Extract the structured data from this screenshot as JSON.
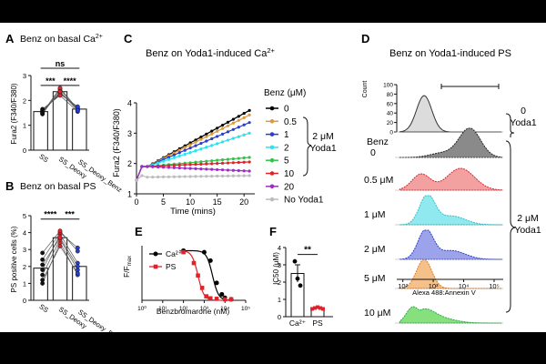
{
  "colors": {
    "ink": "#111111",
    "ss": "#111111",
    "deoxy": "#e0232b",
    "benz": "#2a3fc9",
    "b0": "#000000",
    "b05": "#e09a3a",
    "b1": "#2a3fc9",
    "b2": "#2ee0f0",
    "b5": "#33c24a",
    "b10": "#e0232b",
    "b20": "#9c2cc9",
    "noyoda": "#bdbdbd",
    "ca": "#000000",
    "ps": "#e0232b",
    "h_noyoda": "#dcdcdc",
    "h_0": "#8a8a8a",
    "h_05": "#f3a0a0",
    "h_1": "#8fe9ef",
    "h_2": "#9da3ea",
    "h_5": "#f6c08a",
    "h_10": "#86e07e"
  },
  "panels": {
    "a": {
      "letter": "A",
      "title_main": "Benz on basal Ca",
      "title_sup": "2+",
      "ylabel": "Fura2 (F340/F380)"
    },
    "b": {
      "letter": "B",
      "title": "Benz on basal PS",
      "ylabel": "PS positive cells (%)"
    },
    "c": {
      "letter": "C",
      "title_main": "Benz on Yoda1-induced Ca",
      "title_sup": "2+",
      "legend_title": "Benz (μM)",
      "bracket_label_1": "2 μM",
      "bracket_label_2": "Yoda1"
    },
    "d": {
      "letter": "D",
      "title": "Benz on Yoda1-induced PS",
      "ylabel": "Count",
      "xlabel": "Alexa 488:Annexin V",
      "side_top_1": "0",
      "side_top_2": "Yoda1",
      "side_bottom_1": "2 μM",
      "side_bottom_2": "Yoda1"
    },
    "e": {
      "letter": "E",
      "ylabel": "F/F",
      "ylabel_sub": "max"
    },
    "f": {
      "letter": "F",
      "ylabel": "IC50 (μM)"
    }
  },
  "chart_data": [
    {
      "id": "A",
      "type": "bar",
      "title": "Benz on basal Ca2+",
      "ylabel": "Fura2 (F340/F380)",
      "categories": [
        "SS",
        "SS_Deoxy",
        "SS_Deoxy_Benz"
      ],
      "values": [
        1.55,
        2.35,
        1.65
      ],
      "ylim": [
        0,
        3
      ],
      "yticks": [
        "0",
        "1",
        "2",
        "3"
      ],
      "paired_points": [
        [
          1.45,
          2.45,
          1.6
        ],
        [
          1.5,
          2.5,
          1.65
        ],
        [
          1.55,
          2.3,
          1.7
        ],
        [
          1.6,
          2.25,
          1.75
        ],
        [
          1.65,
          2.2,
          1.55
        ],
        [
          1.5,
          2.35,
          1.6
        ]
      ],
      "annotations": [
        {
          "text": "ns",
          "from": 0,
          "to": 2,
          "level": 3.0
        },
        {
          "text": "***",
          "from": 0,
          "to": 1,
          "level": 2.6
        },
        {
          "text": "****",
          "from": 1,
          "to": 2,
          "level": 2.6
        }
      ]
    },
    {
      "id": "B",
      "type": "bar",
      "title": "Benz on basal PS",
      "ylabel": "PS positive cells (%)",
      "categories": [
        "SS",
        "SS_Deoxy",
        "SS_Deoxy_Benz"
      ],
      "values": [
        1.9,
        3.7,
        2.0
      ],
      "ylim": [
        0,
        5
      ],
      "yticks": [
        "0",
        "1",
        "2",
        "3",
        "4",
        "5"
      ],
      "paired_points": [
        [
          1.0,
          3.4,
          1.5
        ],
        [
          1.5,
          3.6,
          1.8
        ],
        [
          1.8,
          3.9,
          2.2
        ],
        [
          2.4,
          4.0,
          3.1
        ],
        [
          2.8,
          4.1,
          2.9
        ],
        [
          1.2,
          3.2,
          1.6
        ],
        [
          2.1,
          3.7,
          2.0
        ]
      ],
      "annotations": [
        {
          "text": "****",
          "from": 0,
          "to": 1,
          "level": 4.8
        },
        {
          "text": "***",
          "from": 1,
          "to": 2,
          "level": 4.8
        }
      ]
    },
    {
      "id": "C",
      "type": "line",
      "title": "Benz on Yoda1-induced Ca2+",
      "xlabel": "Time (mins)",
      "ylabel": "Fura2 (F340/F380)",
      "xlim": [
        0,
        22
      ],
      "ylim": [
        1,
        4
      ],
      "xticks": [
        "0",
        "5",
        "10",
        "15",
        "20"
      ],
      "yticks": [
        "1",
        "2",
        "3",
        "4"
      ],
      "legend_title": "Benz (μM)",
      "series": [
        {
          "name": "0",
          "color_key": "b0",
          "end": 3.75
        },
        {
          "name": "0.5",
          "color_key": "b05",
          "end": 3.6
        },
        {
          "name": "1",
          "color_key": "b1",
          "end": 3.35
        },
        {
          "name": "2",
          "color_key": "b2",
          "end": 3.0
        },
        {
          "name": "5",
          "color_key": "b5",
          "end": 2.2
        },
        {
          "name": "10",
          "color_key": "b10",
          "end": 2.05
        },
        {
          "name": "20",
          "color_key": "b20",
          "end": 1.75
        },
        {
          "name": "No Yoda1",
          "color_key": "noyoda",
          "end": 1.6
        }
      ]
    },
    {
      "id": "D",
      "type": "area",
      "title": "Benz on Yoda1-induced PS",
      "xlabel": "Alexa 488:Annexin V",
      "ylabel": "Count",
      "count_ticks": [
        "0",
        "20",
        "40",
        "60",
        "80",
        "100"
      ],
      "xticks": [
        "10²",
        "10³",
        "10⁴",
        "10⁵"
      ],
      "histograms": [
        {
          "label": "",
          "fill_key": "h_noyoda",
          "line": "#333333",
          "peak_log": 2.7,
          "shape": "single"
        },
        {
          "label": "Benz 0",
          "label_1": "Benz",
          "label_2": "0",
          "fill_key": "h_0",
          "line": "#222222",
          "peak_log": 4.2,
          "shape": "right"
        },
        {
          "label": "0.5 μM",
          "fill_key": "h_05",
          "line": "#e0232b",
          "peak_log": 3.3,
          "shape": "broad"
        },
        {
          "label": "1 μM",
          "fill_key": "h_1",
          "line": "#2ec2cf",
          "peak_log": 2.8,
          "shape": "left"
        },
        {
          "label": "2 μM",
          "fill_key": "h_2",
          "line": "#2a3fc9",
          "peak_log": 2.75,
          "shape": "left"
        },
        {
          "label": "5 μM",
          "fill_key": "h_5",
          "line": "#e07a1a",
          "peak_log": 2.7,
          "shape": "single"
        },
        {
          "label": "10 μM",
          "fill_key": "h_10",
          "line": "#20b040",
          "peak_log": 2.5,
          "shape": "spread"
        }
      ]
    },
    {
      "id": "E",
      "type": "line",
      "xlabel": "Benzbromarone (nM)",
      "ylabel": "F/Fmax",
      "xticks": [
        "10⁰",
        "10¹",
        "10²",
        "10³",
        "10⁴",
        "10⁵"
      ],
      "xlim_log": [
        0,
        5
      ],
      "ylim": [
        0,
        1.1
      ],
      "series": [
        {
          "name": "Ca²⁺",
          "color_key": "ca",
          "marker": "circle",
          "ic50_log": 3.4,
          "points": [
            [
              2.0,
              1.0
            ],
            [
              3.0,
              0.97
            ],
            [
              3.3,
              0.8
            ],
            [
              3.6,
              0.35
            ],
            [
              3.85,
              0.12
            ],
            [
              4.0,
              0.05
            ],
            [
              4.3,
              0.02
            ]
          ]
        },
        {
          "name": "PS",
          "color_key": "ps",
          "marker": "square",
          "ic50_log": 2.7,
          "points": [
            [
              2.0,
              0.97
            ],
            [
              2.5,
              0.75
            ],
            [
              2.7,
              0.5
            ],
            [
              2.9,
              0.25
            ],
            [
              3.1,
              0.08
            ],
            [
              3.3,
              0.04
            ],
            [
              3.6,
              0.03
            ],
            [
              4.0,
              0.02
            ],
            [
              4.3,
              0.02
            ]
          ]
        }
      ]
    },
    {
      "id": "F",
      "type": "bar",
      "ylabel": "IC50 (μM)",
      "categories": [
        "Ca²⁺",
        "PS"
      ],
      "values": [
        2.5,
        0.5
      ],
      "errors": [
        0.5,
        0.05
      ],
      "ylim": [
        0,
        4
      ],
      "yticks": [
        "0",
        "1",
        "2",
        "3",
        "4"
      ],
      "points": [
        [
          3.2,
          2.2,
          1.8
        ],
        [
          0.45,
          0.5,
          0.55,
          0.5,
          0.45
        ]
      ],
      "annotations": [
        {
          "text": "**",
          "from": 0,
          "to": 1,
          "level": 3.6
        }
      ]
    }
  ]
}
